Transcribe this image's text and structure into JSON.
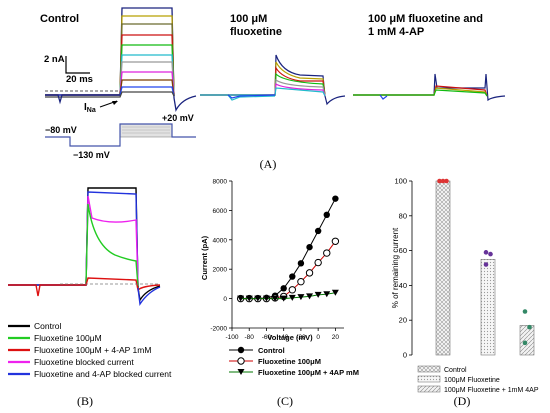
{
  "figure": {
    "panel_a": {
      "label": "(A)",
      "titles": [
        "Control",
        "100 μM",
        "fluoxetine",
        "100 μM fluoxetine and",
        "1 mM 4-AP"
      ],
      "scale_current": "2 nA",
      "scale_time": "20 ms",
      "ina_label": "I",
      "ina_sub": "Na",
      "protocol": {
        "hold": "−80 mV",
        "pre": "−130 mV",
        "step": "+20 mV"
      }
    },
    "panel_b": {
      "label": "(B)",
      "legend": [
        {
          "name": "Control",
          "color": "#000000"
        },
        {
          "name": "Fluoxetine 100μM",
          "color": "#22cc22"
        },
        {
          "name": "Fluoxetine 100μM + 4-AP 1mM",
          "color": "#dd1111"
        },
        {
          "name": "Fluoxetine blocked current",
          "color": "#ee22ee"
        },
        {
          "name": "Fluoxetine and 4-AP blocked current",
          "color": "#2233dd"
        }
      ]
    },
    "panel_c": {
      "label": "(C)"
    },
    "panel_d": {
      "label": "(D)"
    }
  },
  "chart_data": [
    {
      "type": "line",
      "panel": "C",
      "xlabel": "Voltage (mV)",
      "ylabel": "Current (pA)",
      "xlim": [
        -100,
        30
      ],
      "ylim": [
        -2000,
        8000
      ],
      "xticks": [
        -100,
        -80,
        -60,
        -40,
        -20,
        0,
        20
      ],
      "yticks": [
        -2000,
        0,
        2000,
        4000,
        6000,
        8000
      ],
      "x": [
        -90,
        -80,
        -70,
        -60,
        -50,
        -40,
        -30,
        -20,
        -10,
        0,
        10,
        20
      ],
      "series": [
        {
          "name": "Control",
          "marker": "filled-circle",
          "color": "#000000",
          "values": [
            0,
            0,
            0,
            50,
            200,
            700,
            1500,
            2400,
            3500,
            4600,
            5700,
            6800
          ]
        },
        {
          "name": "Fluoxetine 100μM",
          "marker": "open-circle",
          "color": "#cc0000",
          "values": [
            0,
            0,
            0,
            0,
            50,
            150,
            600,
            1150,
            1750,
            2450,
            3100,
            3900
          ]
        },
        {
          "name": "Fluoxetine 100μM + 4AP mM",
          "marker": "filled-triangle-down",
          "color": "#007700",
          "values": [
            0,
            0,
            0,
            0,
            0,
            0,
            50,
            100,
            150,
            250,
            300,
            400
          ]
        }
      ]
    },
    {
      "type": "bar",
      "panel": "D",
      "ylabel": "% of remaining current",
      "ylim": [
        0,
        100
      ],
      "yticks": [
        0,
        20,
        40,
        60,
        80,
        100
      ],
      "categories": [
        "Control",
        "100μM Fluoxetine",
        "100μM Fluoxetine + 1mM 4AP"
      ],
      "values": [
        100,
        55,
        17
      ],
      "points": [
        [
          100,
          100,
          100
        ],
        [
          59,
          58,
          52
        ],
        [
          25,
          16,
          7
        ]
      ],
      "point_colors": [
        "#dd3333",
        "#663399",
        "#338866"
      ],
      "legend": [
        {
          "name": "Control",
          "pattern": "crosshatch"
        },
        {
          "name": "100μM Fluoxetine",
          "pattern": "dots"
        },
        {
          "name": "100μM Fluoxetine + 1mM 4AP",
          "pattern": "diagonal"
        }
      ]
    }
  ]
}
